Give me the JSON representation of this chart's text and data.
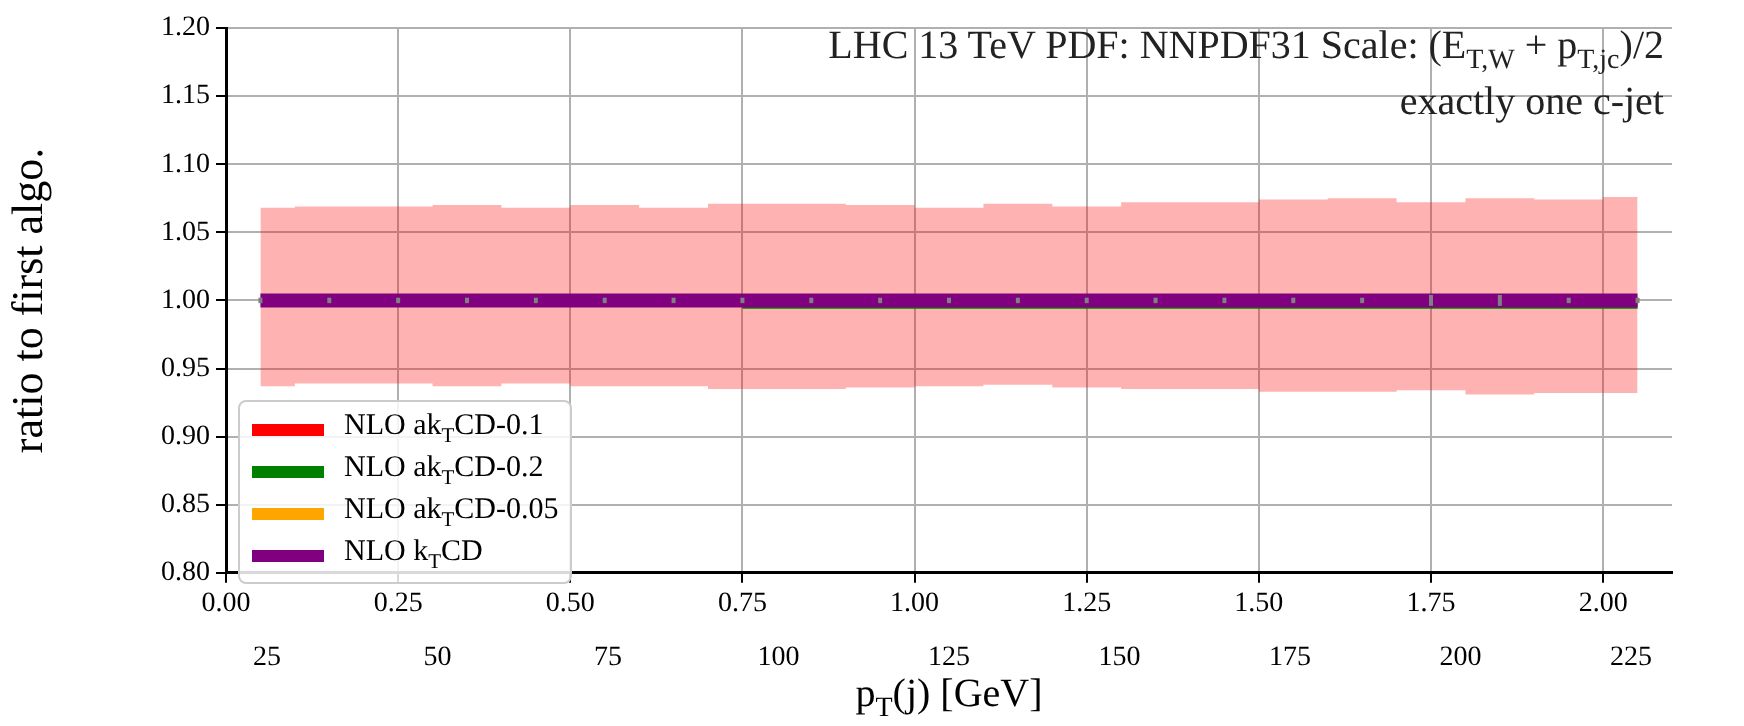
{
  "chart_data": {
    "type": "step",
    "title": "LHC 13 TeV PDF: NNPDF31 Scale: (E$_{T,W}$ + p$_{T,jc}$)/2",
    "subtitle": "exactly one c-jet",
    "xlabel": "p$_{T}$(j) [GeV]",
    "ylabel": "ratio to first algo.",
    "x": [
      0.05,
      0.15,
      0.25,
      0.35,
      0.45,
      0.55,
      0.65,
      0.75,
      0.85,
      0.95,
      1.05,
      1.15,
      1.25,
      1.35,
      1.45,
      1.55,
      1.65,
      1.75,
      1.85,
      1.95,
      2.05
    ],
    "series": [
      {
        "name": "NLO ak$_{T}$CD-0.1",
        "color": "#ff0000",
        "values": [
          null,
          null,
          null,
          null,
          null,
          null,
          null,
          null,
          null,
          null,
          null,
          null,
          null,
          null,
          null,
          null,
          null,
          null,
          null,
          null,
          null
        ],
        "lower": [
          0.937,
          0.939,
          0.939,
          0.937,
          0.939,
          0.937,
          0.937,
          0.935,
          0.935,
          0.936,
          0.937,
          0.938,
          0.936,
          0.935,
          0.935,
          0.933,
          0.933,
          0.934,
          0.931,
          0.932,
          0.932
        ],
        "upper": [
          1.068,
          1.069,
          1.069,
          1.07,
          1.068,
          1.07,
          1.068,
          1.071,
          1.071,
          1.07,
          1.068,
          1.071,
          1.069,
          1.072,
          1.072,
          1.074,
          1.075,
          1.072,
          1.075,
          1.074,
          1.076
        ]
      },
      {
        "name": "NLO ak$_{T}$CD-0.2",
        "color": "#008000",
        "values": [
          null,
          null,
          null,
          null,
          null,
          null,
          null,
          0.996,
          0.996,
          0.996,
          0.996,
          0.996,
          0.996,
          0.996,
          0.996,
          0.996,
          0.996,
          0.996,
          0.996,
          0.996,
          0.996
        ]
      },
      {
        "name": "NLO ak$_{T}$CD-0.05",
        "color": "#ffa500",
        "values": [
          null,
          null,
          null,
          null,
          null,
          null,
          null,
          null,
          null,
          null,
          null,
          null,
          null,
          null,
          null,
          null,
          null,
          null,
          null,
          null,
          null
        ]
      },
      {
        "name": "NLO k$_{T}$CD",
        "color": "#800080",
        "values": [
          1,
          1,
          1,
          1,
          1,
          1,
          1,
          1,
          1,
          1,
          1,
          1,
          1,
          1,
          1,
          1,
          1,
          1,
          1,
          1,
          1
        ],
        "errors": [
          0.002,
          0.002,
          0.002,
          0.002,
          0.002,
          0.002,
          0.002,
          0.002,
          0.002,
          0.002,
          0.002,
          0.002,
          0.002,
          0.002,
          0.002,
          0.002,
          0.002,
          0.004,
          0.004,
          0.002,
          0.002
        ]
      }
    ],
    "xlim": [
      0,
      2.1
    ],
    "xticks": [
      {
        "value": 0,
        "label": "0.00"
      },
      {
        "value": 0.25,
        "label": "0.25"
      },
      {
        "value": 0.5,
        "label": "0.50"
      },
      {
        "value": 0.75,
        "label": "0.75"
      },
      {
        "value": 1,
        "label": "1.00"
      },
      {
        "value": 1.25,
        "label": "1.25"
      },
      {
        "value": 1.5,
        "label": "1.50"
      },
      {
        "value": 1.75,
        "label": "1.75"
      },
      {
        "value": 2,
        "label": "2.00"
      }
    ],
    "x2lim": [
      19,
      231
    ],
    "x2ticks": [
      25,
      50,
      75,
      100,
      125,
      150,
      175,
      200,
      225
    ],
    "ylim": [
      0.8,
      1.2
    ],
    "yticks": [
      {
        "value": 0.8,
        "label": "0.80"
      },
      {
        "value": 0.85,
        "label": "0.85"
      },
      {
        "value": 0.9,
        "label": "0.90"
      },
      {
        "value": 0.95,
        "label": "0.95"
      },
      {
        "value": 1,
        "label": "1.00"
      },
      {
        "value": 1.05,
        "label": "1.05"
      },
      {
        "value": 1.1,
        "label": "1.10"
      },
      {
        "value": 1.15,
        "label": "1.15"
      },
      {
        "value": 1.2,
        "label": "1.20"
      }
    ],
    "grid": true,
    "legend": "bottom left"
  }
}
